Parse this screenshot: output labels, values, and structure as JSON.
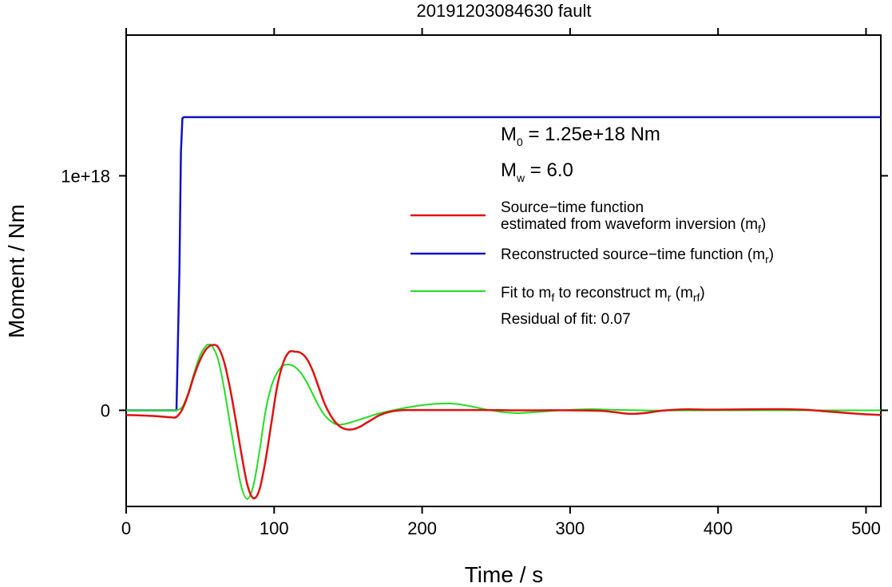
{
  "chart_data": {
    "type": "line",
    "title": "20191203084630 fault",
    "xlabel": "Time / s",
    "ylabel": "Moment / Nm",
    "xlim": [
      0,
      510
    ],
    "ylim": [
      -4.1e+17,
      1.6e+18
    ],
    "x_ticks": [
      0,
      100,
      200,
      300,
      400,
      500
    ],
    "x_tick_labels": [
      "0",
      "100",
      "200",
      "300",
      "400",
      "500"
    ],
    "y_ticks": [
      0,
      1e+18
    ],
    "y_tick_labels": [
      "0",
      "1e+18"
    ],
    "grid": false,
    "legend_position": "right",
    "annotations": {
      "m0": {
        "main": "M",
        "sub": "0",
        "rest": " = 1.25e+18 Nm"
      },
      "mw": {
        "main": "M",
        "sub": "w",
        "rest": " = 6.0"
      },
      "residual": "Residual of fit: 0.07"
    },
    "series": [
      {
        "name": "Source−time function estimated from waveform inversion (m_f)",
        "legend_line1": "Source−time function",
        "legend_line2_text": "estimated from waveform inversion (m",
        "legend_line2_sub": "f",
        "legend_line2_tail": ")",
        "color": "#e01010",
        "x": [
          0,
          10,
          20,
          30,
          34,
          38,
          42,
          46,
          50,
          54,
          58,
          62,
          66,
          70,
          74,
          78,
          82,
          86,
          90,
          94,
          98,
          102,
          106,
          110,
          114,
          118,
          122,
          126,
          130,
          134,
          138,
          142,
          146,
          150,
          154,
          158,
          162,
          166,
          170,
          175,
          180,
          185,
          190,
          200,
          220,
          240,
          260,
          280,
          300,
          320,
          330,
          340,
          350,
          360,
          370,
          380,
          390,
          400,
          420,
          440,
          450,
          460,
          470,
          480,
          490,
          500,
          510
        ],
        "y": [
          -2e+16,
          -2.2e+16,
          -2.5e+16,
          -3e+16,
          -2.8e+16,
          5000000000000000.0,
          7e+16,
          1.5e+17,
          2.15e+17,
          2.6e+17,
          2.78e+17,
          2.7e+17,
          2.1e+17,
          1e+17,
          -4e+16,
          -1.9e+17,
          -3.2e+17,
          -3.75e+17,
          -3.4e+17,
          -2.2e+17,
          -6e+16,
          1e+17,
          2e+17,
          2.48e+17,
          2.5e+17,
          2.45e+17,
          2.2e+17,
          1.7e+17,
          1e+17,
          3e+16,
          -2e+16,
          -5.5e+16,
          -7.5e+16,
          -8.2e+16,
          -8e+16,
          -7e+16,
          -5.5e+16,
          -4e+16,
          -2.5e+16,
          -1.2e+16,
          -4000000000000000.0,
          0,
          1000000000000000.0,
          1000000000000000.0,
          1000000000000000.0,
          1000000000000000.0,
          0,
          0,
          0,
          -2000000000000000.0,
          -8000000000000000.0,
          -1.5e+16,
          -1.2e+16,
          -3000000000000000.0,
          2000000000000000.0,
          4000000000000000.0,
          3000000000000000.0,
          3000000000000000.0,
          4000000000000000.0,
          5000000000000000.0,
          4000000000000000.0,
          2000000000000000.0,
          -3000000000000000.0,
          -8000000000000000.0,
          -1.3e+16,
          -1.7e+16,
          -2e+16
        ]
      },
      {
        "name": "Reconstructed source−time function (m_r)",
        "legend_text": "Reconstructed source−time function (m",
        "legend_sub": "r",
        "legend_tail": ")",
        "color": "#1010c8",
        "x": [
          0,
          34,
          36,
          37,
          38,
          39,
          510
        ],
        "y": [
          0,
          0,
          6e+17,
          1.1e+18,
          1.245e+18,
          1.25e+18,
          1.25e+18
        ]
      },
      {
        "name": "Fit to m_f to reconstruct m_r (m_rf)",
        "legend_text_a": "Fit to m",
        "legend_sub_a": "f",
        "legend_text_b": " to reconstruct m",
        "legend_sub_b": "r",
        "legend_text_c": " (m",
        "legend_sub_c": "rf",
        "legend_text_d": ")",
        "color": "#22dd22",
        "x": [
          0,
          10,
          20,
          30,
          34,
          38,
          42,
          46,
          50,
          54,
          56,
          58,
          62,
          66,
          70,
          74,
          78,
          82,
          86,
          90,
          94,
          98,
          102,
          106,
          110,
          114,
          118,
          122,
          126,
          130,
          134,
          138,
          142,
          146,
          150,
          155,
          160,
          165,
          170,
          180,
          190,
          200,
          210,
          222,
          232,
          242,
          255,
          265,
          280,
          300,
          315,
          330,
          360,
          400,
          450,
          510
        ],
        "y": [
          0,
          0,
          0,
          0,
          1000000000000000.0,
          1.5e+16,
          7.5e+16,
          1.6e+17,
          2.35e+17,
          2.75e+17,
          2.8e+17,
          2.75e+17,
          2.2e+17,
          1e+17,
          -5e+16,
          -2e+17,
          -3.3e+17,
          -3.78e+17,
          -3.2e+17,
          -1.8e+17,
          -1e+16,
          1e+17,
          1.6e+17,
          1.9e+17,
          1.95e+17,
          1.85e+17,
          1.6e+17,
          1.2e+17,
          7e+16,
          2e+16,
          -2e+16,
          -4.5e+16,
          -6e+16,
          -6e+16,
          -5.5e+16,
          -4.5e+16,
          -3.5e+16,
          -2.5e+16,
          -1.5e+16,
          0,
          1.2e+16,
          2.2e+16,
          2.8e+16,
          2.8e+16,
          1.8e+16,
          5000000000000000.0,
          -8000000000000000.0,
          -1.2e+16,
          -6000000000000000.0,
          2000000000000000.0,
          5000000000000000.0,
          2000000000000000.0,
          -1000000000000000.0,
          0,
          0,
          0
        ]
      }
    ]
  }
}
